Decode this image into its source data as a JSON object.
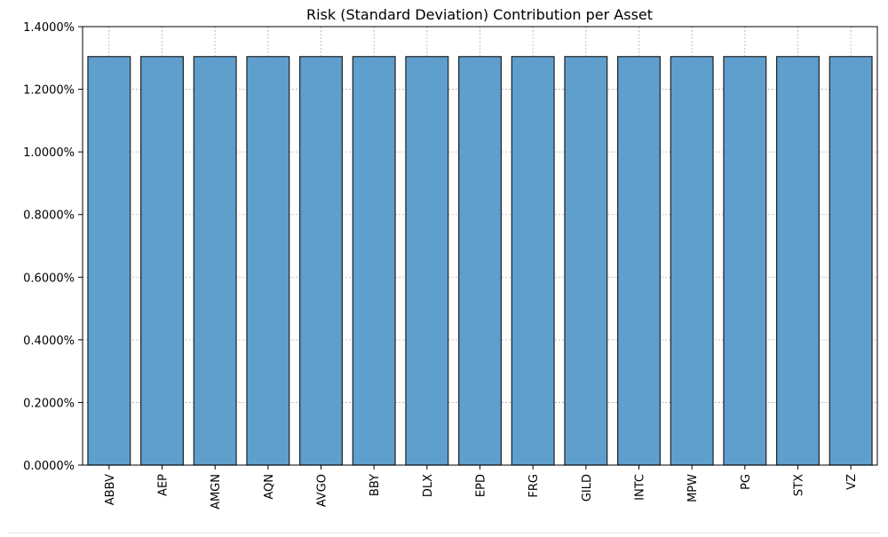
{
  "chart_data": {
    "type": "bar",
    "title": "Risk (Standard Deviation) Contribution per Asset",
    "xlabel": "",
    "ylabel": "",
    "categories": [
      "ABBV",
      "AEP",
      "AMGN",
      "AQN",
      "AVGO",
      "BBY",
      "DLX",
      "EPD",
      "FRG",
      "GILD",
      "INTC",
      "MPW",
      "PG",
      "STX",
      "VZ"
    ],
    "values": [
      1.3043,
      1.3043,
      1.3043,
      1.3043,
      1.3043,
      1.3043,
      1.3043,
      1.3043,
      1.3043,
      1.3043,
      1.3043,
      1.3043,
      1.3043,
      1.3043,
      1.3043
    ],
    "value_unit": "%",
    "ylim": [
      0,
      1.4
    ],
    "yticks": [
      0,
      0.2,
      0.4,
      0.6,
      0.8,
      1.0,
      1.2,
      1.4
    ],
    "ytick_labels": [
      "0.0000%",
      "0.2000%",
      "0.4000%",
      "0.6000%",
      "0.8000%",
      "1.0000%",
      "1.2000%",
      "1.4000%"
    ],
    "grid": true,
    "legend": "none",
    "colors": {
      "bar_fill": "#5f9fcd",
      "bar_edge": "#1f1f1f",
      "grid": "#b0b0b0",
      "axis": "#000000"
    }
  }
}
